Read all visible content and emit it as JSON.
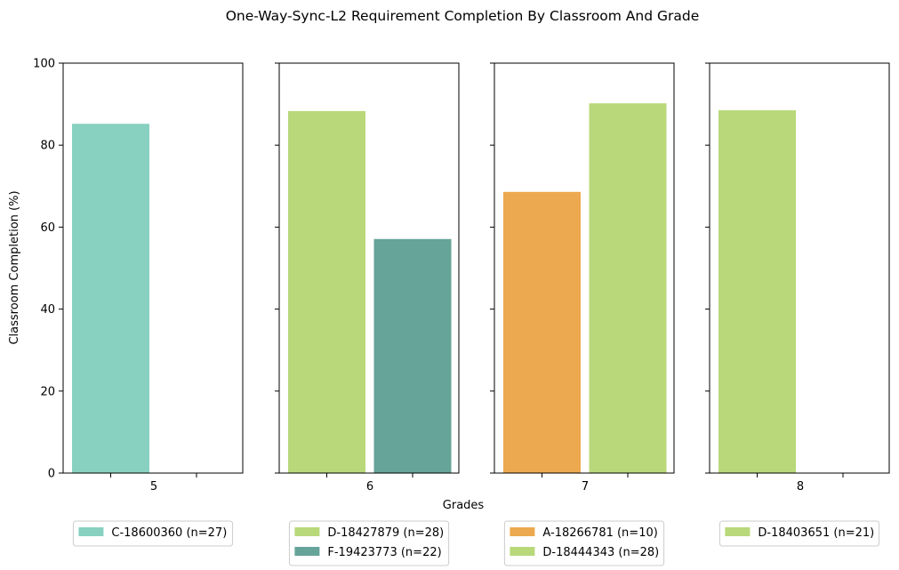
{
  "chart_data": {
    "type": "bar",
    "title": "One-Way-Sync-L2 Requirement Completion By Classroom And Grade",
    "xlabel": "Grades",
    "ylabel": "Classroom Completion (%)",
    "ylim": [
      0,
      100
    ],
    "yticks": [
      "0",
      "20",
      "40",
      "60",
      "80",
      "100"
    ],
    "panels": [
      {
        "grade": "5",
        "bars": [
          {
            "label": "C-18600360 (n=27)",
            "value": 85.2,
            "color": "#88d1c1"
          }
        ]
      },
      {
        "grade": "6",
        "bars": [
          {
            "label": "D-18427879 (n=28)",
            "value": 88.3,
            "color": "#b8d87a"
          },
          {
            "label": "F-19423773 (n=22)",
            "value": 57.1,
            "color": "#66a399"
          }
        ]
      },
      {
        "grade": "7",
        "bars": [
          {
            "label": "A-18266781 (n=10)",
            "value": 68.6,
            "color": "#eca94f"
          },
          {
            "label": "D-18444343 (n=28)",
            "value": 90.2,
            "color": "#b8d87a"
          }
        ]
      },
      {
        "grade": "8",
        "bars": [
          {
            "label": "D-18403651 (n=21)",
            "value": 88.5,
            "color": "#b8d87a"
          }
        ]
      }
    ]
  }
}
